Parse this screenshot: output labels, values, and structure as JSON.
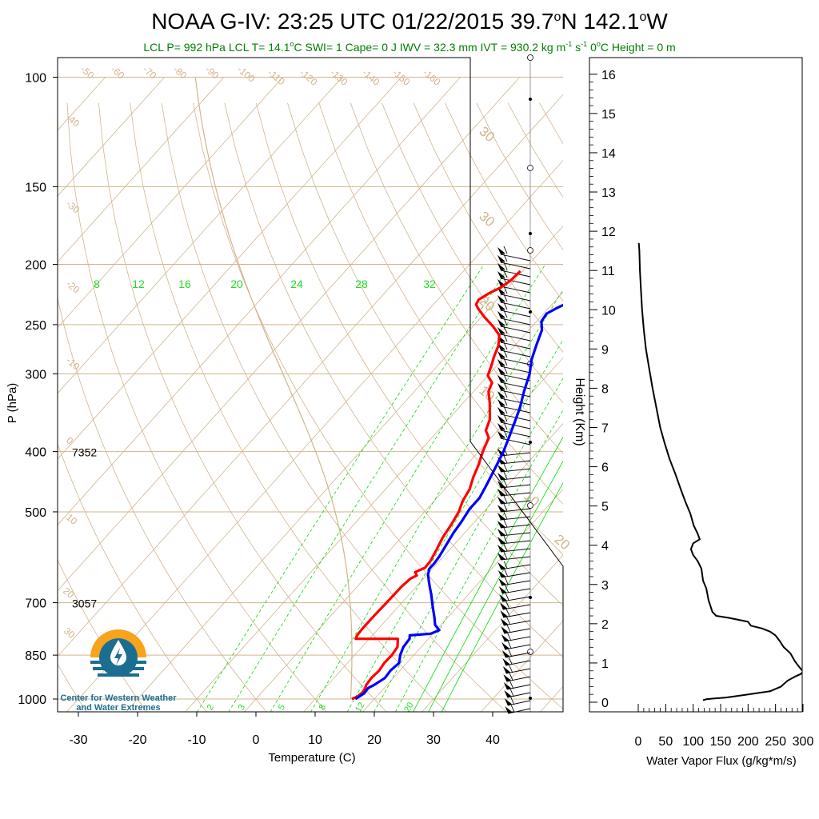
{
  "title": {
    "prefix": "NOAA G-IV: 23:25 UTC 01/22/2015  39.7",
    "lat_hemi": "N 142.1",
    "lon_hemi": "W",
    "degree": "o"
  },
  "subtitle": {
    "part1": "LCL P= 992 hPa  LCL T= 14.1",
    "part2": "C  SWI= 1  Cape= 0 J  IWV = 32.3 mm  IVT = 930.2 kg m",
    "exp1": "-1",
    "part3": " s",
    "exp2": "-1",
    "part4": "  0",
    "part5": "C Height = 0 m",
    "degree": "o"
  },
  "logo_text": [
    "Center for Western Weather",
    "and Water Extremes"
  ],
  "colors": {
    "temperature": "#ff0000",
    "dewpoint": "#0000ff",
    "isotherm": "#d2b48c",
    "dry_adiabat": "#d2b48c",
    "mixing_ratio": "#00dd00",
    "subtitle": "#008000",
    "logo_orange": "#f7a31c",
    "logo_blue": "#1b6e8f"
  },
  "chart_data": [
    {
      "type": "line",
      "name": "skew-t",
      "xlabel": "Temperature (C)",
      "ylabel": "P (hPa)",
      "xlim": [
        -34,
        52
      ],
      "ylim": [
        1050,
        100
      ],
      "y_scale": "log",
      "x_ticks": [
        "-30",
        "-20",
        "-10",
        "0",
        "10",
        "20",
        "30",
        "40"
      ],
      "y_ticks": [
        "100",
        "150",
        "200",
        "250",
        "300",
        "400",
        "500",
        "700",
        "850",
        "1000"
      ],
      "height_annotations": [
        {
          "p": 400,
          "label": "7352"
        },
        {
          "p": 700,
          "label": "3057"
        }
      ],
      "isotherm_labels": [
        "-50",
        "-60",
        "-70",
        "-80",
        "-90",
        "-100",
        "-110",
        "-120",
        "-130",
        "-140",
        "-150",
        "-160",
        "-40",
        "-30",
        "-20",
        "-10",
        "0",
        "10",
        "20",
        "30",
        "30",
        "20",
        "10",
        "0",
        "10",
        "20",
        "30"
      ],
      "mixing_ratio_upper_labels": [
        "8",
        "12",
        "16",
        "20",
        "24",
        "28",
        "32"
      ],
      "mixing_ratio_lower_labels": [
        "2",
        "3",
        "5",
        "8",
        "12",
        "20"
      ],
      "series": [
        {
          "name": "temperature",
          "points": [
            [
              16.2,
              1000
            ],
            [
              16.8,
              990
            ],
            [
              17.0,
              975
            ],
            [
              16.8,
              960
            ],
            [
              16.5,
              950
            ],
            [
              16.3,
              925
            ],
            [
              16.5,
              900
            ],
            [
              16.2,
              875
            ],
            [
              16.3,
              850
            ],
            [
              16.0,
              825
            ],
            [
              15.3,
              810
            ],
            [
              14.8,
              800
            ],
            [
              7.7,
              800
            ],
            [
              7.4,
              790
            ],
            [
              7.3,
              770
            ],
            [
              7.3,
              740
            ],
            [
              7.4,
              700
            ],
            [
              7.5,
              660
            ],
            [
              7.8,
              640
            ],
            [
              8.4,
              633
            ],
            [
              7.6,
              625
            ],
            [
              8.6,
              615
            ],
            [
              8.5,
              600
            ],
            [
              7.8,
              575
            ],
            [
              7.0,
              550
            ],
            [
              6.5,
              525
            ],
            [
              5.8,
              500
            ],
            [
              4.8,
              480
            ],
            [
              4.2,
              460
            ],
            [
              3.0,
              440
            ],
            [
              2.0,
              420
            ],
            [
              0.7,
              400
            ],
            [
              -0.4,
              380
            ],
            [
              -2.0,
              370
            ],
            [
              -3.0,
              355
            ],
            [
              -5.4,
              335
            ],
            [
              -7.5,
              320
            ],
            [
              -8.2,
              310
            ],
            [
              -10.0,
              302
            ],
            [
              -11.0,
              290
            ],
            [
              -11.8,
              282
            ],
            [
              -12.8,
              270
            ],
            [
              -14.2,
              260
            ],
            [
              -16.5,
              252
            ],
            [
              -19.5,
              243
            ],
            [
              -22.0,
              235
            ],
            [
              -22.8,
              232
            ],
            [
              -23.1,
              228
            ],
            [
              -22.2,
              222
            ],
            [
              -21.2,
              218
            ],
            [
              -20.6,
              212
            ],
            [
              -20.4,
              205
            ]
          ]
        },
        {
          "name": "dewpoint",
          "points": [
            [
              16.8,
              1000
            ],
            [
              17.4,
              980
            ],
            [
              17.3,
              960
            ],
            [
              17.8,
              950
            ],
            [
              18.6,
              925
            ],
            [
              18.4,
              900
            ],
            [
              18.7,
              875
            ],
            [
              17.7,
              850
            ],
            [
              17.0,
              825
            ],
            [
              16.8,
              800
            ],
            [
              16.3,
              790
            ],
            [
              19.6,
              785
            ],
            [
              20.5,
              775
            ],
            [
              19.0,
              760
            ],
            [
              17.8,
              740
            ],
            [
              15.8,
              710
            ],
            [
              13.8,
              680
            ],
            [
              12.3,
              660
            ],
            [
              11.2,
              645
            ],
            [
              10.1,
              630
            ],
            [
              9.5,
              617
            ],
            [
              9.5,
              605
            ],
            [
              9.3,
              590
            ],
            [
              8.6,
              560
            ],
            [
              8.1,
              540
            ],
            [
              7.8,
              520
            ],
            [
              7.2,
              495
            ],
            [
              7.2,
              475
            ],
            [
              6.5,
              455
            ],
            [
              5.5,
              430
            ],
            [
              4.2,
              400
            ],
            [
              3.0,
              380
            ],
            [
              1.7,
              360
            ],
            [
              0.3,
              340
            ],
            [
              -1.5,
              320
            ],
            [
              -3.2,
              300
            ],
            [
              -5.0,
              285
            ],
            [
              -6.4,
              270
            ],
            [
              -7.8,
              255
            ],
            [
              -9.2,
              247
            ],
            [
              -9.5,
              240
            ],
            [
              -8.6,
              235
            ],
            [
              -6.9,
              228
            ],
            [
              -5.8,
              220
            ],
            [
              -5.0,
              210
            ],
            [
              -4.8,
              203
            ]
          ]
        }
      ],
      "wind_barb_column": "full-profile"
    },
    {
      "type": "line",
      "name": "water-vapor-flux",
      "xlabel": "Water Vapor Flux (g/kg*m/s)",
      "ylabel": "Height (Km)",
      "xlim": [
        0,
        300
      ],
      "ylim": [
        -0.2,
        16.4
      ],
      "x_ticks": [
        "0",
        "50",
        "100",
        "150",
        "200",
        "250",
        "300"
      ],
      "y_ticks": [
        "0",
        "1",
        "2",
        "3",
        "4",
        "5",
        "6",
        "7",
        "8",
        "9",
        "10",
        "11",
        "12",
        "13",
        "14",
        "15",
        "16"
      ],
      "series": [
        {
          "name": "water vapor flux",
          "points": [
            [
              118,
              0.05
            ],
            [
              125,
              0.08
            ],
            [
              160,
              0.12
            ],
            [
              190,
              0.18
            ],
            [
              240,
              0.28
            ],
            [
              260,
              0.4
            ],
            [
              272,
              0.55
            ],
            [
              285,
              0.65
            ],
            [
              296,
              0.72
            ],
            [
              300,
              0.78
            ],
            [
              293,
              0.9
            ],
            [
              285,
              1.05
            ],
            [
              277,
              1.25
            ],
            [
              265,
              1.4
            ],
            [
              258,
              1.55
            ],
            [
              250,
              1.7
            ],
            [
              240,
              1.8
            ],
            [
              225,
              1.88
            ],
            [
              205,
              1.95
            ],
            [
              200,
              2.05
            ],
            [
              165,
              2.15
            ],
            [
              142,
              2.2
            ],
            [
              135,
              2.3
            ],
            [
              128,
              2.6
            ],
            [
              124,
              2.9
            ],
            [
              118,
              3.1
            ],
            [
              115,
              3.4
            ],
            [
              108,
              3.6
            ],
            [
              100,
              3.75
            ],
            [
              96,
              3.9
            ],
            [
              100,
              4.05
            ],
            [
              112,
              4.15
            ],
            [
              108,
              4.3
            ],
            [
              101,
              4.5
            ],
            [
              95,
              4.8
            ],
            [
              86,
              5.1
            ],
            [
              78,
              5.4
            ],
            [
              68,
              5.8
            ],
            [
              57,
              6.2
            ],
            [
              48,
              6.6
            ],
            [
              40,
              7.0
            ],
            [
              33,
              7.5
            ],
            [
              26,
              8.0
            ],
            [
              20,
              8.5
            ],
            [
              14,
              9.0
            ],
            [
              10,
              9.5
            ],
            [
              7,
              10.0
            ],
            [
              5,
              10.5
            ],
            [
              3,
              11.0
            ],
            [
              2,
              11.5
            ],
            [
              1,
              11.7
            ]
          ]
        }
      ]
    }
  ]
}
